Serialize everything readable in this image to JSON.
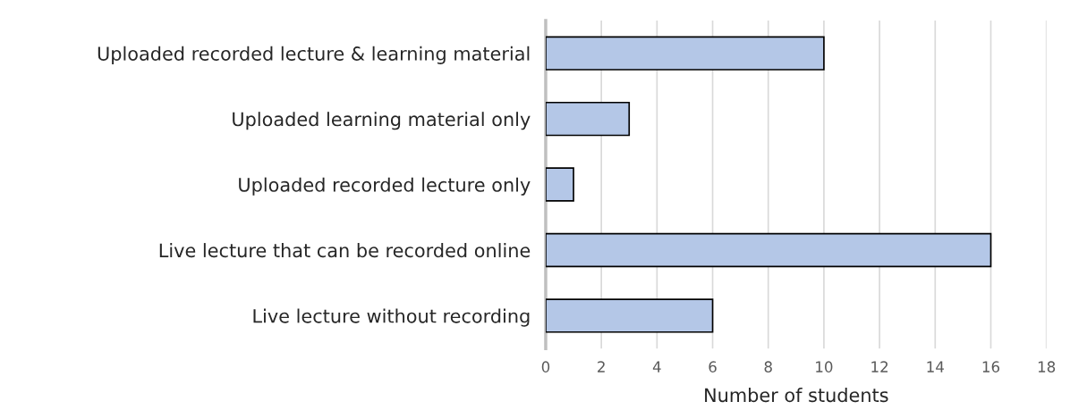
{
  "chart_data": {
    "type": "bar",
    "orientation": "horizontal",
    "xlabel": "Number of students",
    "categories": [
      "Uploaded recorded lecture & learning material",
      "Uploaded learning material only",
      "Uploaded recorded lecture only",
      "Live lecture that can be recorded online",
      "Live lecture without recording"
    ],
    "values": [
      10,
      3,
      1,
      16,
      6
    ],
    "color": "#b4c7e7",
    "xlim": [
      0,
      18
    ],
    "xticks": [
      0,
      2,
      4,
      6,
      8,
      10,
      12,
      14,
      16,
      18
    ],
    "grid": "x",
    "legend": false
  }
}
